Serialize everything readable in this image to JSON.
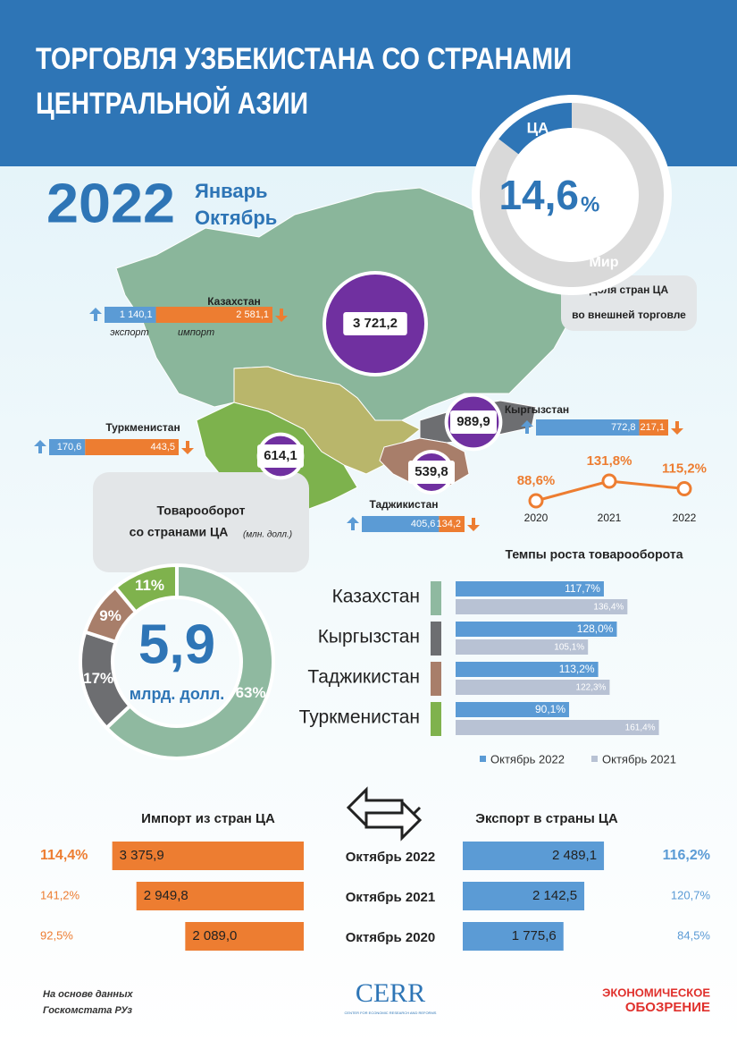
{
  "header": {
    "title_line1": "ТОРГОВЛЯ УЗБЕКИСТАНА СО СТРАНАМИ",
    "title_line2": "ЦЕНТРАЛЬНОЙ АЗИИ"
  },
  "period": {
    "year": "2022",
    "month_from": "Январь",
    "month_to": "Октябрь"
  },
  "share": {
    "type": "pie",
    "ca_label": "ЦА",
    "world_label": "Мир",
    "value": 14.6,
    "value_label": "14,6",
    "unit": "%",
    "ca_color": "#2e75b6",
    "world_color": "#d9d9d9",
    "caption_line1": "Доля стран ЦА",
    "caption_line2": "во внешней торговле"
  },
  "map": {
    "export_label": "экспорт",
    "import_label": "импорт",
    "export_color": "#5b9bd5",
    "import_color": "#ed7d31",
    "bubble_color": "#7030a0",
    "countries": [
      {
        "name": "Казахстан",
        "total": 3721.2,
        "total_label": "3 721,2",
        "export": 1140.1,
        "export_label": "1 140,1",
        "import": 2581.1,
        "import_label": "2 581,1"
      },
      {
        "name": "Кыргызстан",
        "total": 989.9,
        "total_label": "989,9",
        "export": 772.8,
        "export_label": "772,8",
        "import": 217.1,
        "import_label": "217,1"
      },
      {
        "name": "Туркменистан",
        "total": 614.1,
        "total_label": "614,1",
        "export": 170.6,
        "export_label": "170,6",
        "import": 443.5,
        "import_label": "443,5"
      },
      {
        "name": "Таджикистан",
        "total": 539.8,
        "total_label": "539,8",
        "export": 405.6,
        "export_label": "405,6",
        "import": 134.2,
        "import_label": "134,2"
      }
    ]
  },
  "turnover": {
    "type": "pie",
    "title_line1": "Товарооборот",
    "title_line2": "со странами ЦА",
    "unit_note": "(млн. долл.)",
    "total": "5,9",
    "total_unit": "млрд. долл.",
    "segments": [
      {
        "value": 63,
        "label": "63%",
        "color": "#8fb9a0"
      },
      {
        "value": 17,
        "label": "17%",
        "color": "#6d6e71"
      },
      {
        "value": 9,
        "label": "9%",
        "color": "#a87e6a"
      },
      {
        "value": 11,
        "label": "11%",
        "color": "#7fb24d"
      }
    ]
  },
  "growth": {
    "type": "line",
    "x": [
      "2020",
      "2021",
      "2022"
    ],
    "values": [
      88.6,
      131.8,
      115.2
    ],
    "value_labels": [
      "88,6%",
      "131,8%",
      "115,2%"
    ],
    "color": "#ed7d31"
  },
  "growth_bars": {
    "type": "bar",
    "title": "Темпы роста товарооборота",
    "categories": [
      "Казахстан",
      "Кыргызстан",
      "Таджикистан",
      "Туркменистан"
    ],
    "category_colors": [
      "#8fb9a0",
      "#6d6e71",
      "#a87e6a",
      "#7fb24d"
    ],
    "series": [
      {
        "name": "Октябрь 2022",
        "color": "#5b9bd5",
        "values": [
          117.7,
          128.0,
          113.2,
          90.1
        ],
        "value_labels": [
          "117,7%",
          "128,0%",
          "113,2%",
          "90,1%"
        ]
      },
      {
        "name": "Октябрь 2021",
        "color": "#b8c2d4",
        "values": [
          136.4,
          105.1,
          122.3,
          161.4
        ],
        "value_labels": [
          "136,4%",
          "105,1%",
          "122,3%",
          "161,4%"
        ]
      }
    ]
  },
  "trade": {
    "type": "bar",
    "import_title": "Импорт из стран ЦА",
    "export_title": "Экспорт в страны ЦА",
    "periods": [
      "Октябрь 2022",
      "Октябрь 2021",
      "Октябрь 2020"
    ],
    "import": {
      "color": "#ed7d31",
      "values": [
        3375.9,
        2949.8,
        2089.0
      ],
      "value_labels": [
        "3 375,9",
        "2 949,8",
        "2 089,0"
      ],
      "growth": [
        114.4,
        141.2,
        92.5
      ],
      "growth_labels": [
        "114,4%",
        "141,2%",
        "92,5%"
      ]
    },
    "export": {
      "color": "#5b9bd5",
      "values": [
        2489.1,
        2142.5,
        1775.6
      ],
      "value_labels": [
        "2 489,1",
        "2 142,5",
        "1 775,6"
      ],
      "growth": [
        116.2,
        120.7,
        84.5
      ],
      "growth_labels": [
        "116,2%",
        "120,7%",
        "84,5%"
      ]
    }
  },
  "footer": {
    "source_line1": "На основе данных",
    "source_line2": "Госкомстата РУз",
    "cerr": "CERR",
    "cerr_sub": "CENTER FOR ECONOMIC RESEARCH AND REFORMS",
    "brand_line1": "ЭКОНОМИЧЕСКОЕ",
    "brand_line2": "ОБОЗРЕНИЕ"
  }
}
